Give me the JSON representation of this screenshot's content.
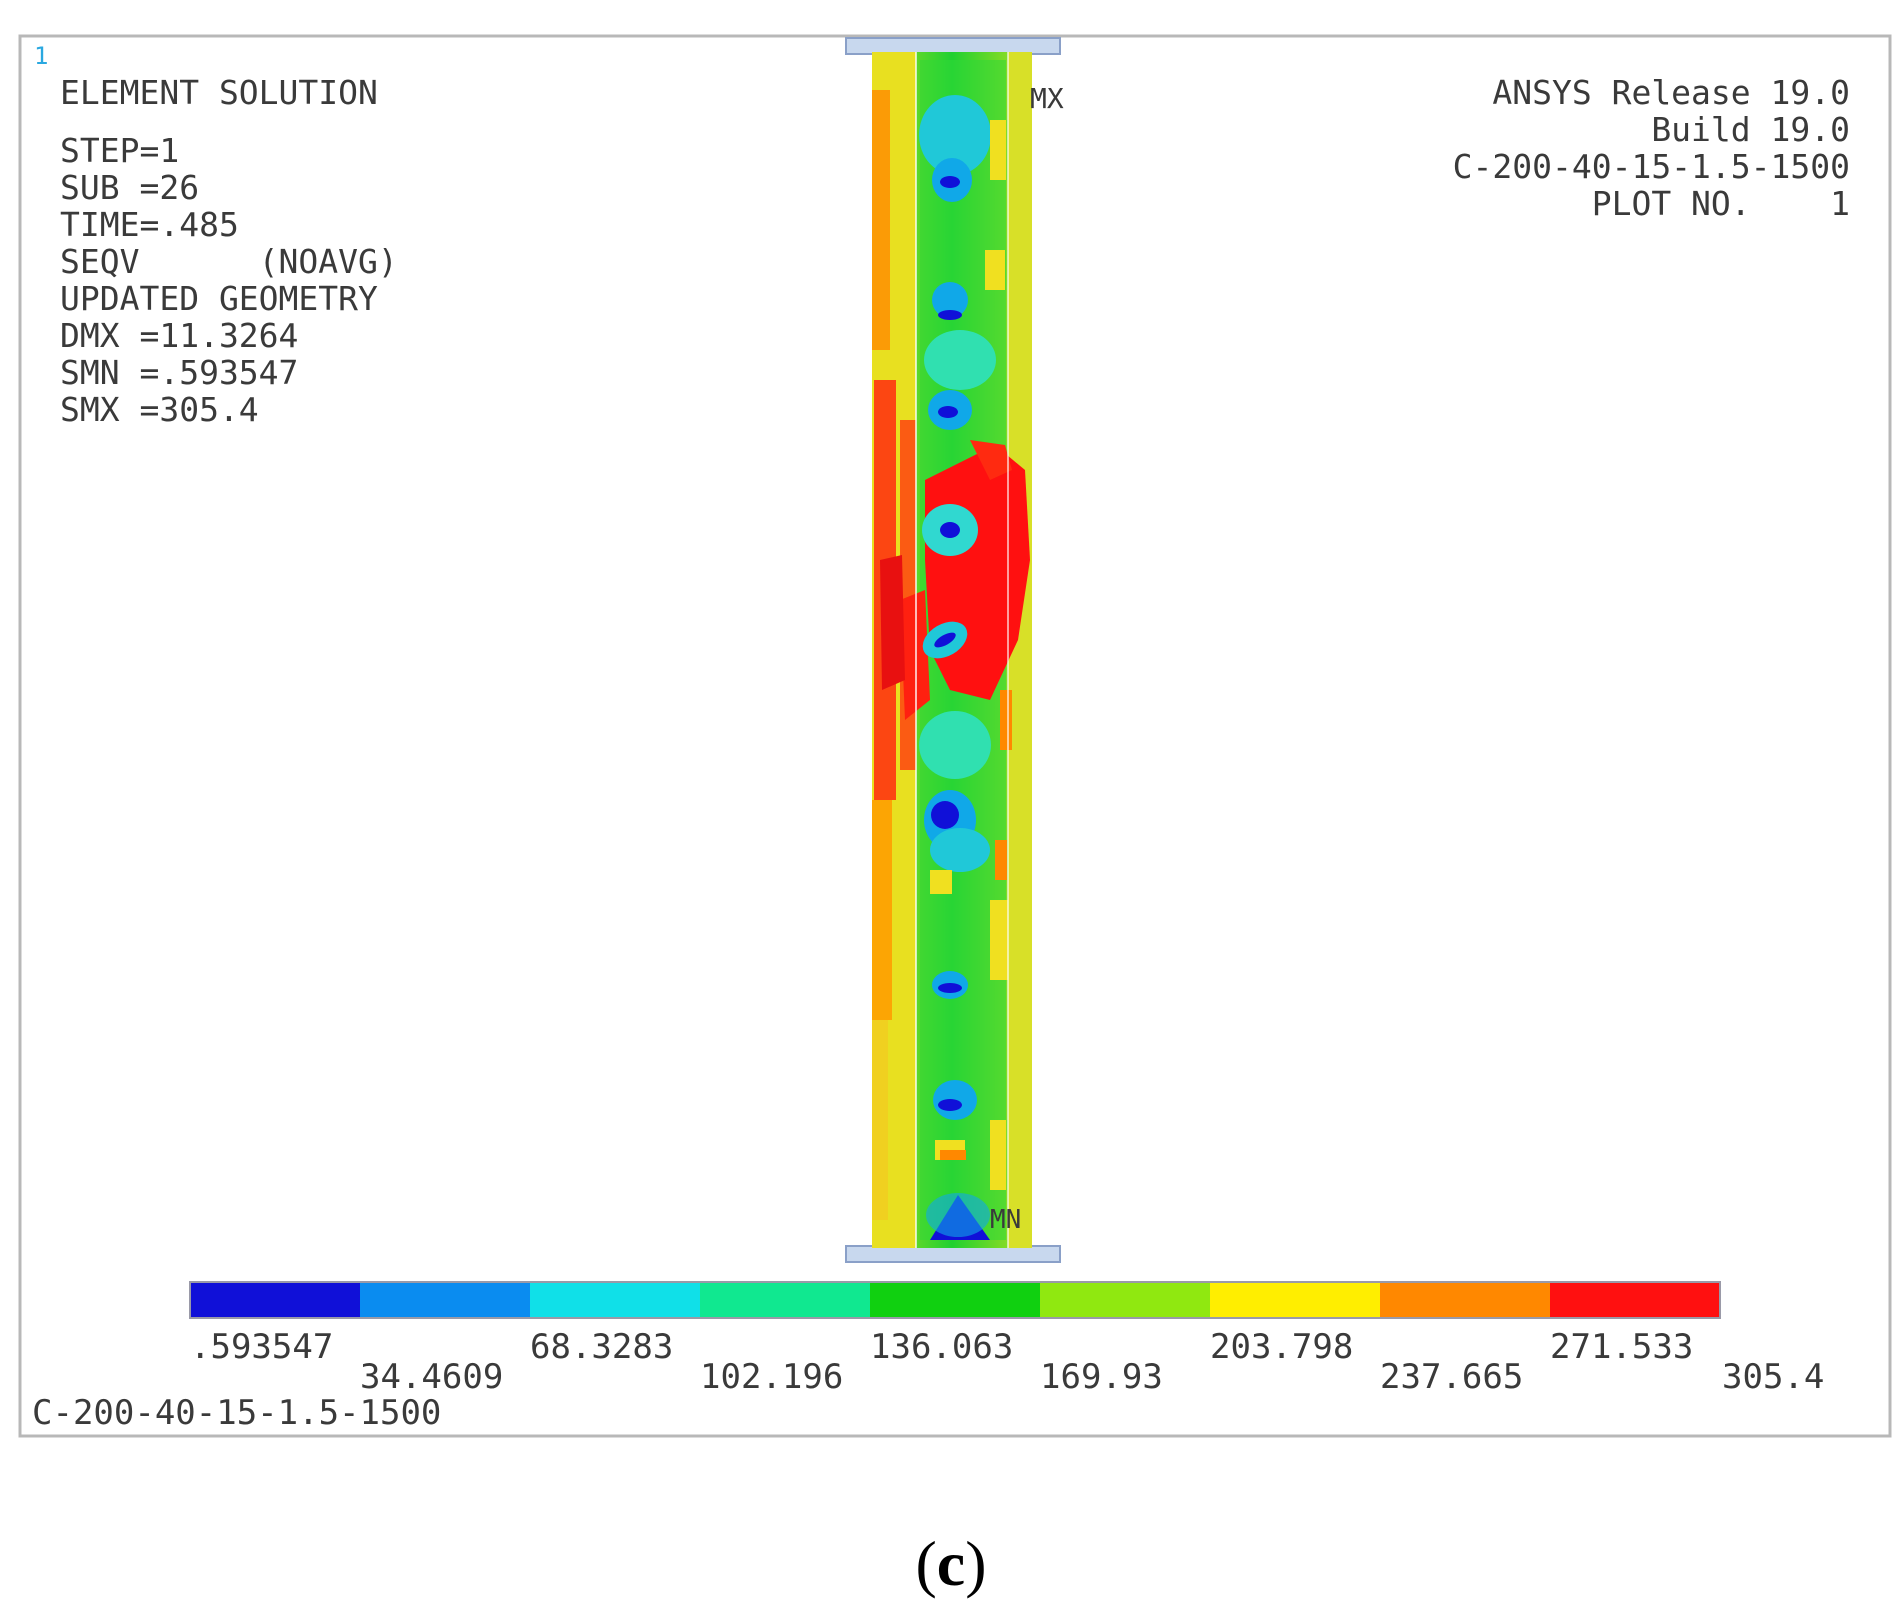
{
  "corner_marker": "1",
  "info_left": [
    "ELEMENT SOLUTION",
    "STEP=1",
    "SUB =26",
    "TIME=.485",
    "SEQV      (NOAVG)",
    "UPDATED GEOMETRY",
    "DMX =11.3264",
    "SMN =.593547",
    "SMX =305.4"
  ],
  "info_right": [
    "ANSYS Release 19.0",
    "Build 19.0",
    "C-200-40-15-1.5-1500",
    "PLOT NO.    1"
  ],
  "mx_label": "MX",
  "mn_label": "MN",
  "legend": {
    "colors": [
      "#1010d8",
      "#0a8cf0",
      "#10e0e8",
      "#10e890",
      "#10d010",
      "#90e810",
      "#ffee00",
      "#ff8800",
      "#ff1010"
    ],
    "values_top": [
      ".593547",
      "68.3283",
      "136.063",
      "203.798",
      "271.533"
    ],
    "values_bottom": [
      "34.4609",
      "102.196",
      "169.93",
      "237.665",
      "305.4"
    ]
  },
  "model_label": "C-200-40-15-1.5-1500",
  "caption": {
    "open": "(",
    "letter": "c",
    "close": ")"
  }
}
